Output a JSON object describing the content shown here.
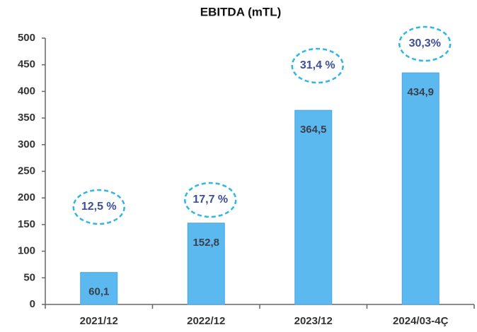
{
  "chart_data": {
    "type": "bar",
    "title": "EBITDA (mTL)",
    "categories": [
      "2021/12",
      "2022/12",
      "2023/12",
      "2024/03-4Ç"
    ],
    "values": [
      60.1,
      152.8,
      364.5,
      434.9
    ],
    "value_labels": [
      "60,1",
      "152,8",
      "364,5",
      "434,9"
    ],
    "annotations": [
      "12,5 %",
      "17,7 %",
      "31,4 %",
      "30,3%"
    ],
    "color": "#5cb9ef",
    "ylim": [
      0,
      500
    ],
    "yticks": [
      0,
      50,
      100,
      150,
      200,
      250,
      300,
      350,
      400,
      450,
      500
    ],
    "grid": false
  }
}
